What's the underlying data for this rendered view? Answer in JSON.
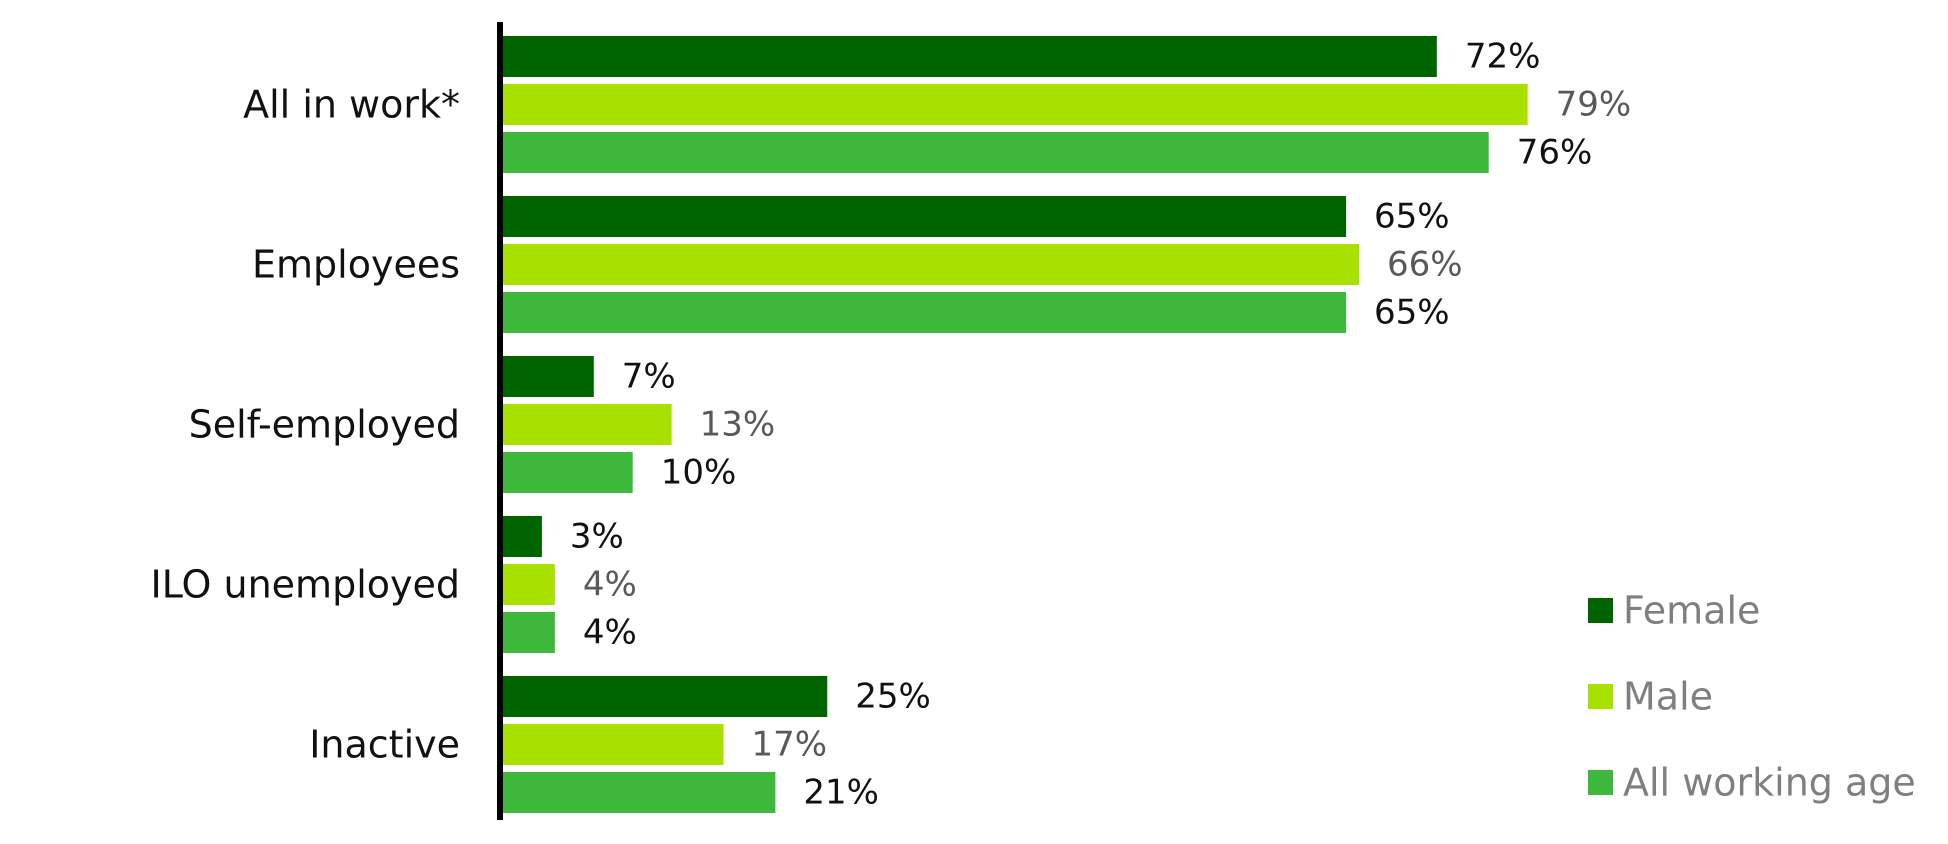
{
  "chart_data": {
    "type": "bar",
    "orientation": "horizontal",
    "categories": [
      "All in work*",
      "Employees",
      "Self-employed",
      "ILO unemployed",
      "Inactive"
    ],
    "series": [
      {
        "name": "Female",
        "values": [
          72,
          65,
          7,
          3,
          25
        ],
        "color": "#006400",
        "label_color": "#111111"
      },
      {
        "name": "Male",
        "values": [
          79,
          66,
          13,
          4,
          17
        ],
        "color": "#a8e000",
        "label_color": "#595959"
      },
      {
        "name": "All working age",
        "values": [
          76,
          65,
          10,
          4,
          21
        ],
        "color": "#3db83d",
        "label_color": "#111111"
      }
    ],
    "value_suffix": "%",
    "xlim": [
      0,
      100
    ],
    "grid": false,
    "legend_position": "bottom-right",
    "title": "",
    "xlabel": "",
    "ylabel": ""
  },
  "colors": {
    "axis": "#000000",
    "legend_text": "#7f7f7f",
    "category_text": "#111111"
  }
}
